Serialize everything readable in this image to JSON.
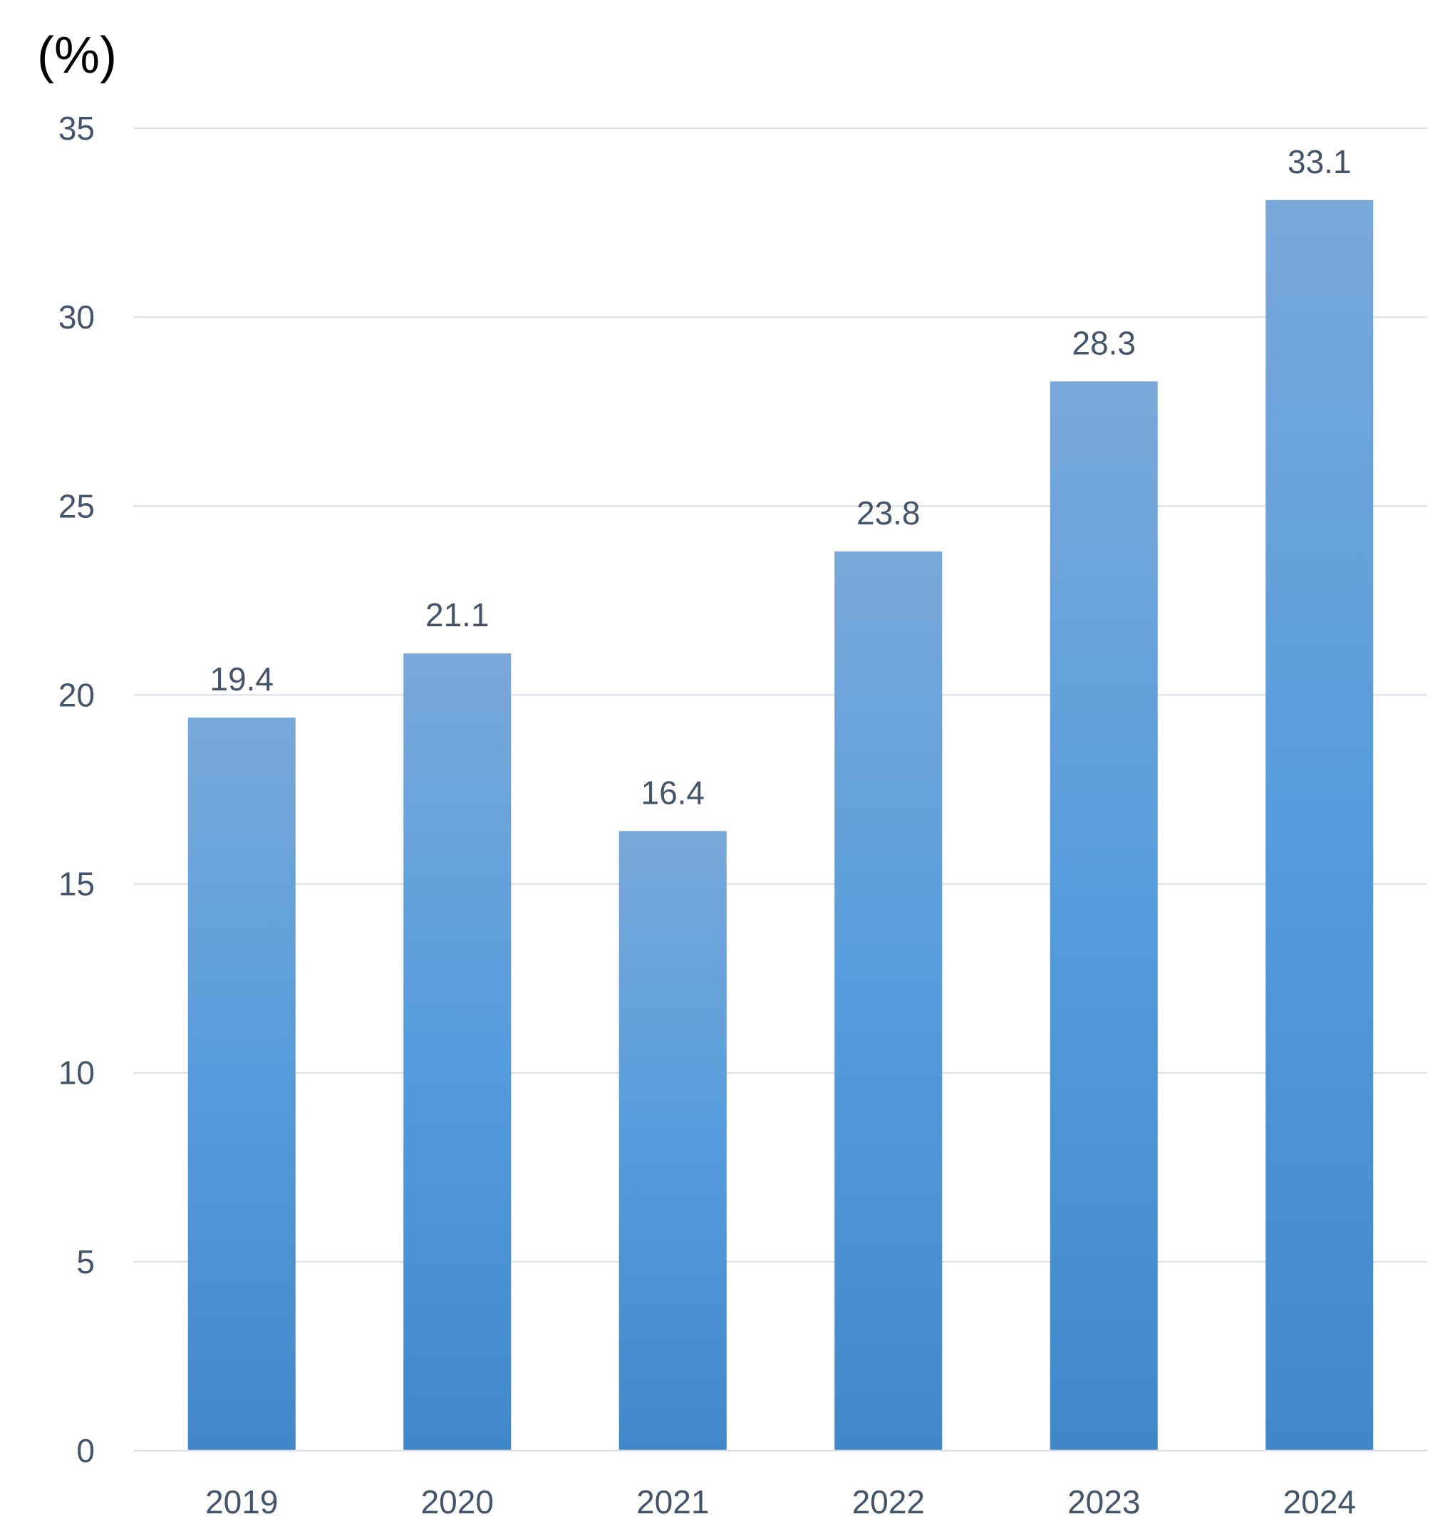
{
  "chart_data": {
    "type": "bar",
    "unit_label": "(%)",
    "title": "",
    "xlabel": "",
    "ylabel": "",
    "categories": [
      "2019",
      "2020",
      "2021",
      "2022",
      "2023",
      "2024"
    ],
    "values": [
      19.4,
      21.1,
      16.4,
      23.8,
      28.3,
      33.1
    ],
    "data_labels": [
      "19.4",
      "21.1",
      "16.4",
      "23.8",
      "28.3",
      "33.1"
    ],
    "ylim": [
      0,
      35
    ],
    "yticks": [
      0,
      5,
      10,
      15,
      20,
      25,
      30,
      35
    ],
    "ytick_labels": [
      "0",
      "5",
      "10",
      "15",
      "20",
      "25",
      "30",
      "35"
    ],
    "grid": true,
    "legend": "none",
    "colors": {
      "bar_top": "#79a8da",
      "bar_bottom": "#4088c9",
      "gridline": "#d9dde6",
      "label_text": "#44546a"
    }
  }
}
